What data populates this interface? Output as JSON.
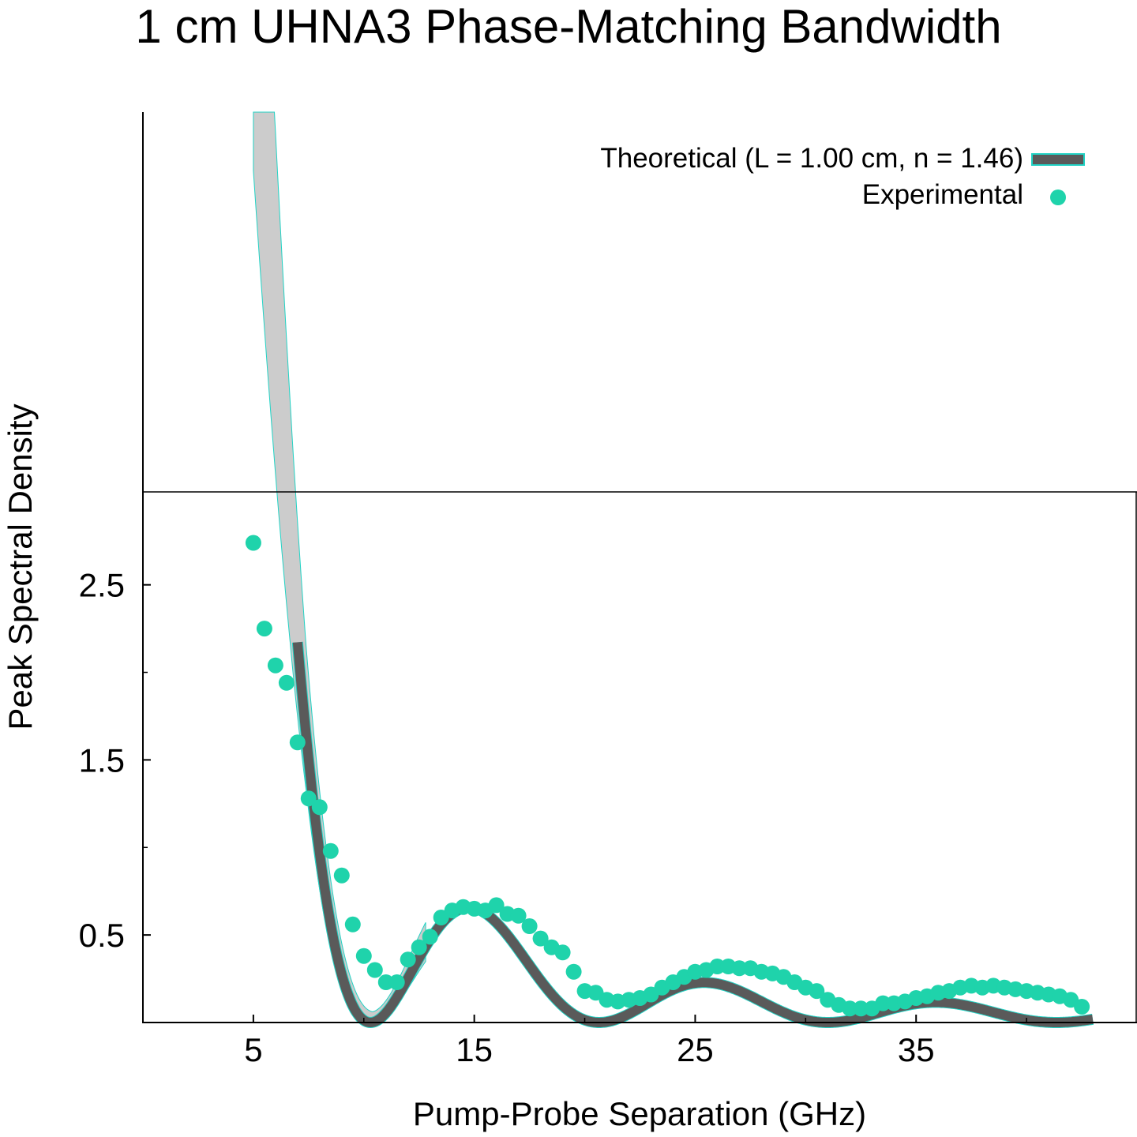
{
  "chart_data": {
    "type": "line",
    "title": "1 cm UHNA3 Phase-Matching Bandwidth",
    "xlabel": "Pump-Probe Separation (GHz)",
    "ylabel": "Peak Spectral Density",
    "xlim": [
      0,
      45
    ],
    "ylim": [
      0,
      5.2
    ],
    "xticks": [
      5,
      15,
      25,
      35
    ],
    "xtick_labels": [
      "5",
      "15",
      "25",
      "35"
    ],
    "yticks": [
      0.5,
      1.5,
      2.5
    ],
    "ytick_labels": [
      "0.5",
      "1.5",
      "2.5"
    ],
    "minor_yticks": [
      1.0,
      2.0
    ],
    "minor_xticks": [
      10,
      20,
      30,
      40
    ],
    "grid": false,
    "legend_position": "top-right",
    "band_color": "#cccccc",
    "band_edge_color": "#22d3c5",
    "series": [
      {
        "name": "Theoretical (L = 1.00 cm, n = 1.46)",
        "style": "line",
        "color": "#5a5a5a",
        "edge_color": "#22d3c5",
        "x_start": 7.0,
        "x_end": 43.0,
        "band_x_start": 5.0,
        "band_x_end": 12.8
      },
      {
        "name": "Experimental",
        "style": "points",
        "color": "#1fd3ab",
        "x": [
          5.0,
          5.5,
          6.0,
          6.5,
          7.0,
          7.5,
          8.0,
          8.5,
          9.0,
          9.5,
          10.0,
          10.5,
          11.0,
          11.5,
          12.0,
          12.5,
          13.0,
          13.5,
          14.0,
          14.5,
          15.0,
          15.5,
          16.0,
          16.5,
          17.0,
          17.5,
          18.0,
          18.5,
          19.0,
          19.5,
          20.0,
          20.5,
          21.0,
          21.5,
          22.0,
          22.5,
          23.0,
          23.5,
          24.0,
          24.5,
          25.0,
          25.5,
          26.0,
          26.5,
          27.0,
          27.5,
          28.0,
          28.5,
          29.0,
          29.5,
          30.0,
          30.5,
          31.0,
          31.5,
          32.0,
          32.5,
          33.0,
          33.5,
          34.0,
          34.5,
          35.0,
          35.5,
          36.0,
          36.5,
          37.0,
          37.5,
          38.0,
          38.5,
          39.0,
          39.5,
          40.0,
          40.5,
          41.0,
          41.5,
          42.0,
          42.5
        ],
        "y": [
          2.74,
          2.25,
          2.04,
          1.94,
          1.6,
          1.28,
          1.23,
          0.98,
          0.84,
          0.56,
          0.38,
          0.3,
          0.23,
          0.23,
          0.36,
          0.43,
          0.49,
          0.6,
          0.64,
          0.66,
          0.65,
          0.64,
          0.67,
          0.62,
          0.61,
          0.55,
          0.48,
          0.43,
          0.4,
          0.29,
          0.18,
          0.17,
          0.13,
          0.12,
          0.13,
          0.14,
          0.16,
          0.2,
          0.23,
          0.26,
          0.29,
          0.3,
          0.32,
          0.32,
          0.31,
          0.31,
          0.29,
          0.28,
          0.26,
          0.23,
          0.2,
          0.18,
          0.13,
          0.1,
          0.08,
          0.08,
          0.08,
          0.11,
          0.11,
          0.12,
          0.14,
          0.15,
          0.17,
          0.18,
          0.2,
          0.21,
          0.2,
          0.21,
          0.2,
          0.19,
          0.18,
          0.17,
          0.16,
          0.15,
          0.13,
          0.09
        ]
      }
    ]
  }
}
